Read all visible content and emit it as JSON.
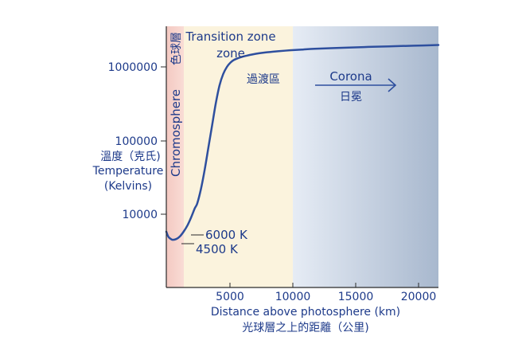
{
  "chart_data": {
    "type": "line",
    "x_scale": "linear",
    "y_scale": "log",
    "xlim": [
      0,
      22000
    ],
    "ylim": [
      1000,
      4000000
    ],
    "x_ticks": [
      5000,
      10000,
      15000,
      20000
    ],
    "x_tick_labels": [
      "5000",
      "10000",
      "15000",
      "20000"
    ],
    "y_ticks": [
      10000,
      100000,
      1000000
    ],
    "y_tick_labels": [
      "10000",
      "100000",
      "1000000"
    ],
    "xlabel": "Distance above photosphere (km)",
    "xlabel_cjk": "光球層之上的距離（公里)",
    "ylabel_cjk": "溫度（克氏)",
    "ylabel_line1": "Temperature",
    "ylabel_line2": "(Kelvins)",
    "grid": false,
    "series": [
      {
        "x": [
          0,
          150,
          300,
          500,
          800,
          1100,
          1400,
          1700,
          2000,
          2300,
          2500,
          2800,
          3100,
          3400,
          3700,
          4000,
          4300,
          4600,
          4900,
          5200,
          5500,
          6000,
          6500,
          7000,
          7500,
          8000,
          8500,
          9000,
          10000,
          11000,
          12000,
          14000,
          16000,
          18000,
          20000,
          22000
        ],
        "y": [
          5800,
          5000,
          4700,
          4500,
          4600,
          5000,
          5800,
          7000,
          9000,
          12000,
          14000,
          22000,
          40000,
          80000,
          160000,
          320000,
          560000,
          800000,
          1000000,
          1150000,
          1250000,
          1350000,
          1420000,
          1480000,
          1530000,
          1570000,
          1600000,
          1630000,
          1680000,
          1720000,
          1760000,
          1810000,
          1860000,
          1900000,
          1940000,
          1980000
        ]
      }
    ],
    "regions": [
      {
        "name": "Chromosphere",
        "name_cjk": "色球層",
        "x_start": 0,
        "x_end": 1400,
        "color": "#f6d2cc"
      },
      {
        "name": "Transition zone",
        "name_cjk": "過渡區",
        "x_start": 1400,
        "x_end": 10000,
        "color": "#fbf3dd"
      },
      {
        "name": "Corona",
        "name_cjk": "日冕",
        "x_start": 10000,
        "x_end": 22000,
        "color_start": "#e3eaf4",
        "color_end": "#a9bad0"
      }
    ],
    "annotations": [
      {
        "text": "6000 K",
        "x": 1400,
        "y": 6000
      },
      {
        "text": "4500 K",
        "x": 800,
        "y": 4500
      }
    ]
  },
  "colors": {
    "curve": "#2e4f9e",
    "axis": "#2a2a2a",
    "text": "#1d3a8a"
  }
}
